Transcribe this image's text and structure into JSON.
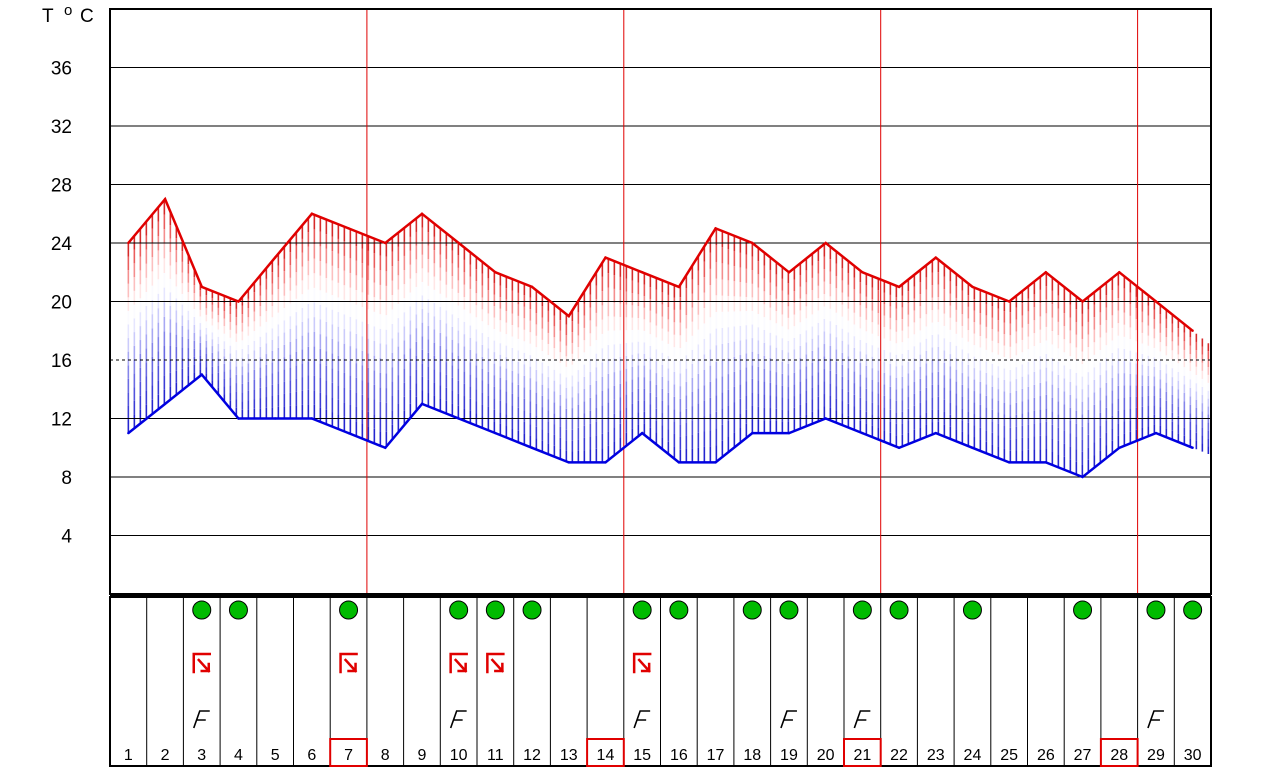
{
  "chart_data": {
    "type": "line",
    "y_axis_label_parts": [
      "T",
      "o",
      "C"
    ],
    "y_ticks": [
      4,
      8,
      12,
      16,
      20,
      24,
      28,
      32,
      36
    ],
    "ylim": [
      0,
      40
    ],
    "grid": true,
    "dashed_reference_line": 16,
    "x": [
      1,
      2,
      3,
      4,
      5,
      6,
      7,
      8,
      9,
      10,
      11,
      12,
      13,
      14,
      15,
      16,
      17,
      18,
      19,
      20,
      21,
      22,
      23,
      24,
      25,
      26,
      27,
      28,
      29,
      30
    ],
    "day_labels": [
      "1",
      "2",
      "3",
      "4",
      "5",
      "6",
      "7",
      "8",
      "9",
      "10",
      "11",
      "12",
      "13",
      "14",
      "15",
      "16",
      "17",
      "18",
      "19",
      "20",
      "21",
      "22",
      "23",
      "24",
      "25",
      "26",
      "27",
      "28",
      "29",
      "30"
    ],
    "week_separator_after_days": [
      7,
      14,
      21,
      28
    ],
    "highlighted_days": [
      7,
      14,
      21,
      28
    ],
    "series": [
      {
        "values": [
          24,
          27,
          21,
          20,
          23,
          26,
          25,
          24,
          26,
          24,
          22,
          21,
          19,
          23,
          22,
          21,
          25,
          24,
          22,
          24,
          22,
          21,
          23,
          21,
          20,
          22,
          20,
          22,
          20,
          18
        ],
        "color": "#e00000"
      },
      {
        "values": [
          11,
          13,
          15,
          12,
          12,
          12,
          11,
          10,
          13,
          12,
          11,
          10,
          9,
          9,
          11,
          9,
          9,
          11,
          11,
          12,
          11,
          10,
          11,
          10,
          9,
          9,
          8,
          10,
          11,
          10
        ],
        "color": "#0000e0"
      }
    ],
    "markers": {
      "green_circle_days": [
        3,
        4,
        7,
        10,
        11,
        12,
        15,
        16,
        18,
        19,
        21,
        22,
        24,
        27,
        29,
        30
      ],
      "red_symbol_days": [
        3,
        7,
        10,
        11,
        15
      ],
      "f_symbol_days": [
        3,
        10,
        15,
        19,
        21,
        29
      ]
    },
    "colors": {
      "max_line": "#e00000",
      "min_line": "#0000e0",
      "week_line": "#e00000",
      "circle": "#00bb00"
    }
  }
}
